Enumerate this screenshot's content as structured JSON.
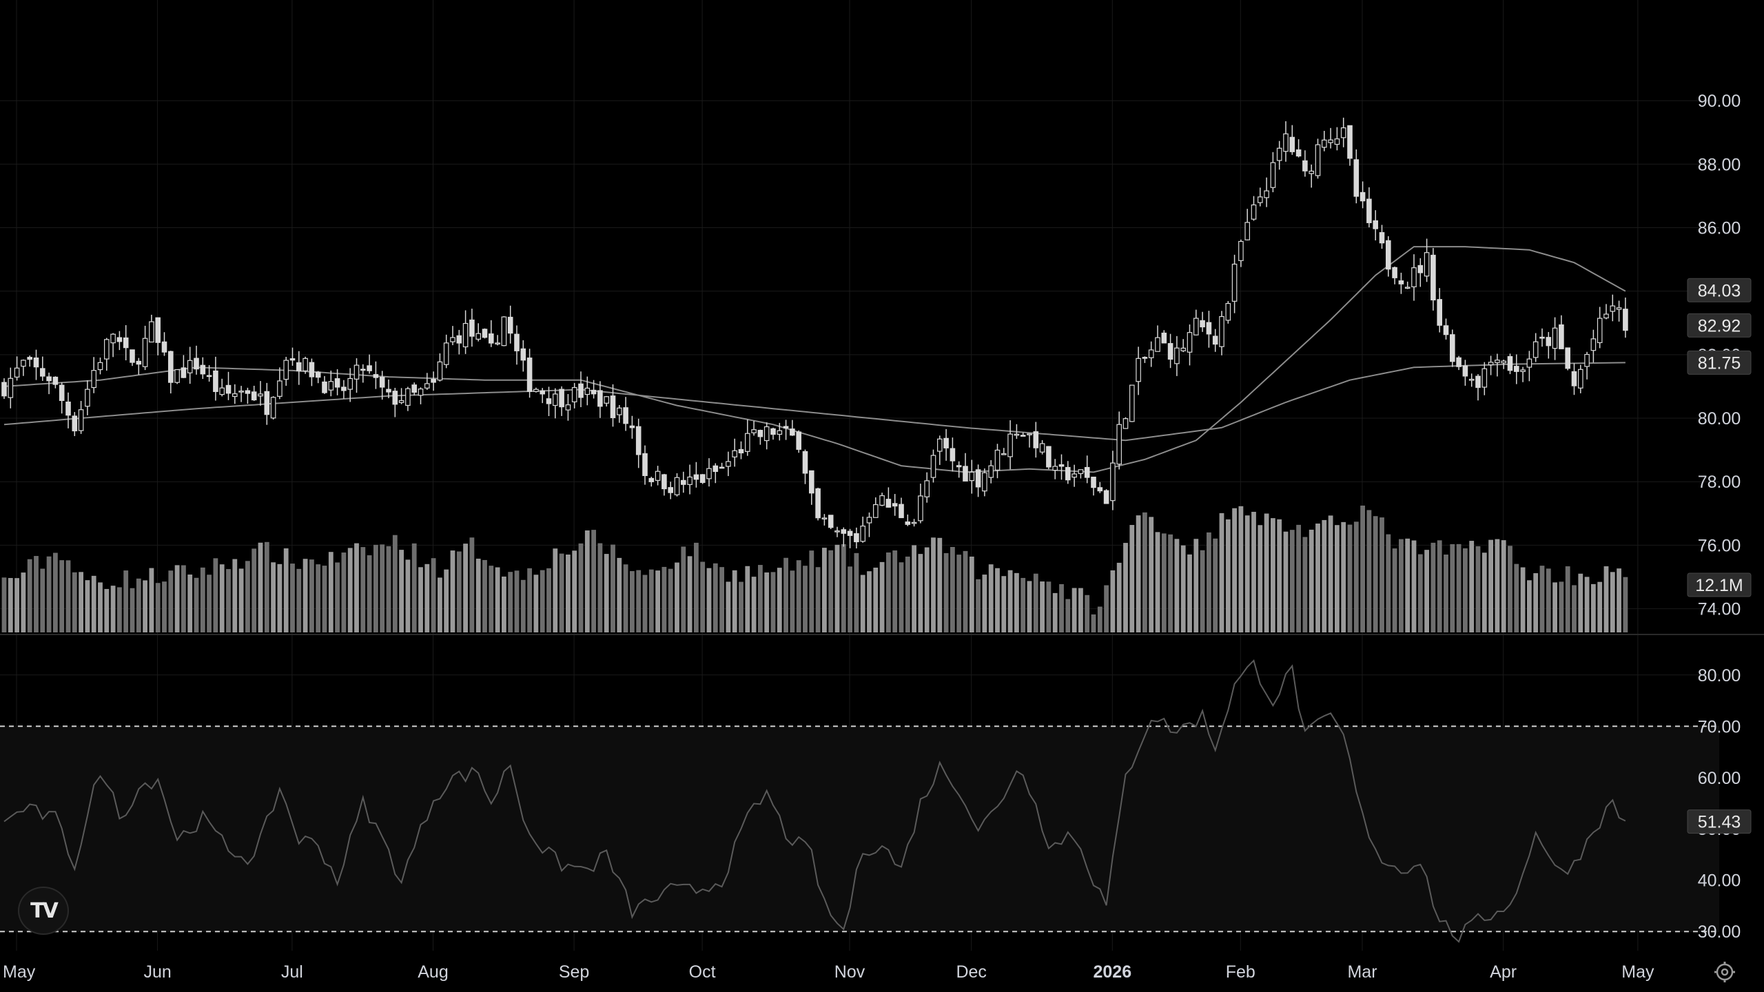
{
  "chart_data": {
    "type": "candlestick",
    "price_axis": {
      "ticks": [
        "90.00",
        "88.00",
        "86.00",
        "84.00",
        "82.00",
        "80.00",
        "78.00",
        "76.00",
        "74.00"
      ],
      "range": [
        73.6,
        91.0
      ]
    },
    "rsi_axis": {
      "ticks": [
        "80.00",
        "70.00",
        "60.00",
        "50.00",
        "40.00",
        "30.00"
      ],
      "range": [
        26,
        84
      ],
      "bands": [
        30,
        70
      ]
    },
    "x_labels": [
      {
        "text": "May",
        "bold": false,
        "slot": 0
      },
      {
        "text": "Jun",
        "bold": false,
        "slot": 22
      },
      {
        "text": "Jul",
        "bold": false,
        "slot": 43
      },
      {
        "text": "Aug",
        "bold": false,
        "slot": 65
      },
      {
        "text": "Sep",
        "bold": false,
        "slot": 87
      },
      {
        "text": "Oct",
        "bold": false,
        "slot": 107
      },
      {
        "text": "Nov",
        "bold": false,
        "slot": 130
      },
      {
        "text": "Dec",
        "bold": false,
        "slot": 149
      },
      {
        "text": "2026",
        "bold": true,
        "slot": 171
      },
      {
        "text": "Feb",
        "bold": false,
        "slot": 191
      },
      {
        "text": "Mar",
        "bold": false,
        "slot": 210
      },
      {
        "text": "Apr",
        "bold": false,
        "slot": 232
      },
      {
        "text": "May",
        "bold": false,
        "slot": 253
      }
    ],
    "price_anchors": [
      [
        0,
        81.0
      ],
      [
        3,
        81.7
      ],
      [
        7,
        81.3
      ],
      [
        11,
        79.8
      ],
      [
        14,
        81.5
      ],
      [
        17,
        82.7
      ],
      [
        20,
        81.6
      ],
      [
        23,
        82.8
      ],
      [
        26,
        81.3
      ],
      [
        30,
        81.7
      ],
      [
        34,
        80.7
      ],
      [
        38,
        80.9
      ],
      [
        41,
        80.4
      ],
      [
        44,
        82.0
      ],
      [
        48,
        81.5
      ],
      [
        52,
        80.7
      ],
      [
        56,
        81.6
      ],
      [
        60,
        80.6
      ],
      [
        64,
        80.7
      ],
      [
        67,
        81.0
      ],
      [
        69,
        82.3
      ],
      [
        72,
        82.8
      ],
      [
        76,
        82.1
      ],
      [
        78,
        83.2
      ],
      [
        80,
        82.0
      ],
      [
        82,
        81.1
      ],
      [
        86,
        80.6
      ],
      [
        90,
        80.8
      ],
      [
        94,
        80.5
      ],
      [
        98,
        79.7
      ],
      [
        100,
        78.3
      ],
      [
        104,
        77.9
      ],
      [
        108,
        78.0
      ],
      [
        112,
        78.4
      ],
      [
        116,
        79.3
      ],
      [
        120,
        79.6
      ],
      [
        124,
        79.3
      ],
      [
        127,
        76.7
      ],
      [
        130,
        76.3
      ],
      [
        133,
        76.2
      ],
      [
        136,
        77.5
      ],
      [
        139,
        77.1
      ],
      [
        142,
        76.8
      ],
      [
        144,
        78.0
      ],
      [
        146,
        79.2
      ],
      [
        149,
        78.4
      ],
      [
        152,
        78.1
      ],
      [
        155,
        78.8
      ],
      [
        158,
        79.7
      ],
      [
        161,
        79.3
      ],
      [
        164,
        78.2
      ],
      [
        167,
        78.3
      ],
      [
        170,
        77.9
      ],
      [
        172,
        77.5
      ],
      [
        174,
        79.6
      ],
      [
        177,
        81.6
      ],
      [
        180,
        82.4
      ],
      [
        183,
        82.0
      ],
      [
        186,
        82.9
      ],
      [
        189,
        82.6
      ],
      [
        191,
        83.7
      ],
      [
        193,
        85.5
      ],
      [
        196,
        87.0
      ],
      [
        198,
        87.8
      ],
      [
        200,
        88.9
      ],
      [
        203,
        87.6
      ],
      [
        206,
        89.0
      ],
      [
        209,
        88.9
      ],
      [
        211,
        87.0
      ],
      [
        214,
        85.7
      ],
      [
        216,
        84.9
      ],
      [
        219,
        84.3
      ],
      [
        222,
        85.0
      ],
      [
        224,
        83.0
      ],
      [
        227,
        81.6
      ],
      [
        230,
        81.2
      ],
      [
        233,
        82.1
      ],
      [
        236,
        81.4
      ],
      [
        239,
        82.2
      ],
      [
        242,
        82.6
      ],
      [
        245,
        81.0
      ],
      [
        248,
        82.5
      ],
      [
        251,
        83.6
      ],
      [
        253,
        82.9
      ]
    ],
    "ma_fast_anchors": [
      [
        0,
        81.0
      ],
      [
        15,
        81.2
      ],
      [
        30,
        81.6
      ],
      [
        45,
        81.5
      ],
      [
        60,
        81.3
      ],
      [
        75,
        81.2
      ],
      [
        90,
        81.2
      ],
      [
        105,
        80.4
      ],
      [
        120,
        79.8
      ],
      [
        130,
        79.2
      ],
      [
        140,
        78.5
      ],
      [
        150,
        78.3
      ],
      [
        160,
        78.4
      ],
      [
        170,
        78.3
      ],
      [
        178,
        78.7
      ],
      [
        186,
        79.3
      ],
      [
        193,
        80.5
      ],
      [
        200,
        81.8
      ],
      [
        207,
        83.1
      ],
      [
        214,
        84.5
      ],
      [
        220,
        85.4
      ],
      [
        228,
        85.4
      ],
      [
        238,
        85.3
      ],
      [
        245,
        84.9
      ],
      [
        253,
        84.0
      ]
    ],
    "ma_slow_anchors": [
      [
        0,
        79.8
      ],
      [
        30,
        80.3
      ],
      [
        60,
        80.7
      ],
      [
        90,
        80.9
      ],
      [
        120,
        80.3
      ],
      [
        150,
        79.7
      ],
      [
        175,
        79.3
      ],
      [
        190,
        79.7
      ],
      [
        200,
        80.5
      ],
      [
        210,
        81.2
      ],
      [
        220,
        81.6
      ],
      [
        235,
        81.7
      ],
      [
        253,
        81.75
      ]
    ],
    "rsi_anchors": [
      [
        0,
        51
      ],
      [
        3,
        54
      ],
      [
        8,
        52
      ],
      [
        11,
        43
      ],
      [
        14,
        58
      ],
      [
        16,
        60
      ],
      [
        18,
        52
      ],
      [
        21,
        58
      ],
      [
        24,
        60
      ],
      [
        27,
        48
      ],
      [
        31,
        52
      ],
      [
        35,
        46
      ],
      [
        39,
        44
      ],
      [
        43,
        58
      ],
      [
        46,
        48
      ],
      [
        49,
        47
      ],
      [
        52,
        40
      ],
      [
        56,
        55
      ],
      [
        59,
        48
      ],
      [
        62,
        40
      ],
      [
        67,
        56
      ],
      [
        70,
        60
      ],
      [
        74,
        61
      ],
      [
        76,
        55
      ],
      [
        79,
        63
      ],
      [
        81,
        52
      ],
      [
        84,
        46
      ],
      [
        87,
        43
      ],
      [
        91,
        42
      ],
      [
        94,
        45
      ],
      [
        98,
        34
      ],
      [
        101,
        36
      ],
      [
        104,
        38
      ],
      [
        108,
        38
      ],
      [
        112,
        40
      ],
      [
        116,
        52
      ],
      [
        119,
        57
      ],
      [
        122,
        49
      ],
      [
        126,
        45
      ],
      [
        128,
        35
      ],
      [
        131,
        30
      ],
      [
        134,
        46
      ],
      [
        137,
        47
      ],
      [
        140,
        42
      ],
      [
        143,
        55
      ],
      [
        146,
        62
      ],
      [
        149,
        58
      ],
      [
        152,
        50
      ],
      [
        155,
        54
      ],
      [
        158,
        62
      ],
      [
        161,
        56
      ],
      [
        163,
        46
      ],
      [
        166,
        49
      ],
      [
        168,
        47
      ],
      [
        170,
        40
      ],
      [
        172,
        35
      ],
      [
        175,
        60
      ],
      [
        179,
        72
      ],
      [
        183,
        69
      ],
      [
        187,
        72
      ],
      [
        189,
        66
      ],
      [
        192,
        78
      ],
      [
        195,
        82
      ],
      [
        198,
        75
      ],
      [
        201,
        81
      ],
      [
        203,
        68
      ],
      [
        207,
        72
      ],
      [
        209,
        68
      ],
      [
        212,
        52
      ],
      [
        215,
        44
      ],
      [
        218,
        42
      ],
      [
        221,
        44
      ],
      [
        224,
        32
      ],
      [
        227,
        29
      ],
      [
        230,
        32
      ],
      [
        233,
        34
      ],
      [
        236,
        37
      ],
      [
        239,
        50
      ],
      [
        242,
        42
      ],
      [
        245,
        43
      ],
      [
        248,
        50
      ],
      [
        251,
        55
      ],
      [
        253,
        51
      ]
    ],
    "volume_anchors": [
      [
        0,
        0.58
      ],
      [
        9,
        0.95
      ],
      [
        12,
        0.6
      ],
      [
        20,
        0.62
      ],
      [
        30,
        0.7
      ],
      [
        41,
        0.95
      ],
      [
        45,
        0.82
      ],
      [
        52,
        0.85
      ],
      [
        61,
        1.05
      ],
      [
        68,
        0.75
      ],
      [
        73,
        1.0
      ],
      [
        80,
        0.65
      ],
      [
        86,
        0.9
      ],
      [
        92,
        1.1
      ],
      [
        100,
        0.65
      ],
      [
        107,
        0.98
      ],
      [
        112,
        0.7
      ],
      [
        121,
        0.72
      ],
      [
        130,
        0.95
      ],
      [
        135,
        0.7
      ],
      [
        141,
        0.95
      ],
      [
        147,
        1.0
      ],
      [
        152,
        0.72
      ],
      [
        160,
        0.7
      ],
      [
        168,
        0.4
      ],
      [
        171,
        0.3
      ],
      [
        176,
        1.2
      ],
      [
        178,
        1.4
      ],
      [
        183,
        1.1
      ],
      [
        187,
        0.95
      ],
      [
        190,
        1.3
      ],
      [
        192,
        1.55
      ],
      [
        197,
        1.3
      ],
      [
        205,
        1.15
      ],
      [
        212,
        1.45
      ],
      [
        218,
        1.0
      ],
      [
        223,
        0.95
      ],
      [
        227,
        0.95
      ],
      [
        233,
        1.1
      ],
      [
        237,
        0.72
      ],
      [
        248,
        0.65
      ],
      [
        253,
        0.7
      ]
    ],
    "volume_max_ref": 1.6,
    "last_price_labels": [
      {
        "text": "84.03",
        "value": 84.03,
        "pane": "price"
      },
      {
        "text": "82.92",
        "value": 82.92,
        "pane": "price"
      },
      {
        "text": "81.75",
        "value": 81.75,
        "pane": "price"
      }
    ],
    "hidden_tick_label": "82.00",
    "last_volume_label": {
      "text": "12.1M"
    },
    "last_rsi_label": {
      "text": "51.43",
      "value": 51.43
    },
    "colors": {
      "background": "#000000",
      "grid": "#1a1a1a",
      "candle_up": "#d9d9d9",
      "candle_down": "#d9d9d9",
      "volume_up": "#9a9a9a",
      "volume_down": "#6e6e6e",
      "ma": "#8c8c8c",
      "rsi_line": "#5a5a5a",
      "rsi_band_fill": "#0d0d0d",
      "axis_text": "#d1d4dc",
      "label_bg": "#2c2c2c"
    },
    "candle_count": 254
  },
  "branding": {
    "logo_icon": "tradingview-logo-icon",
    "logo_text": "TV"
  },
  "controls": {
    "settings_icon": "gear-icon"
  }
}
